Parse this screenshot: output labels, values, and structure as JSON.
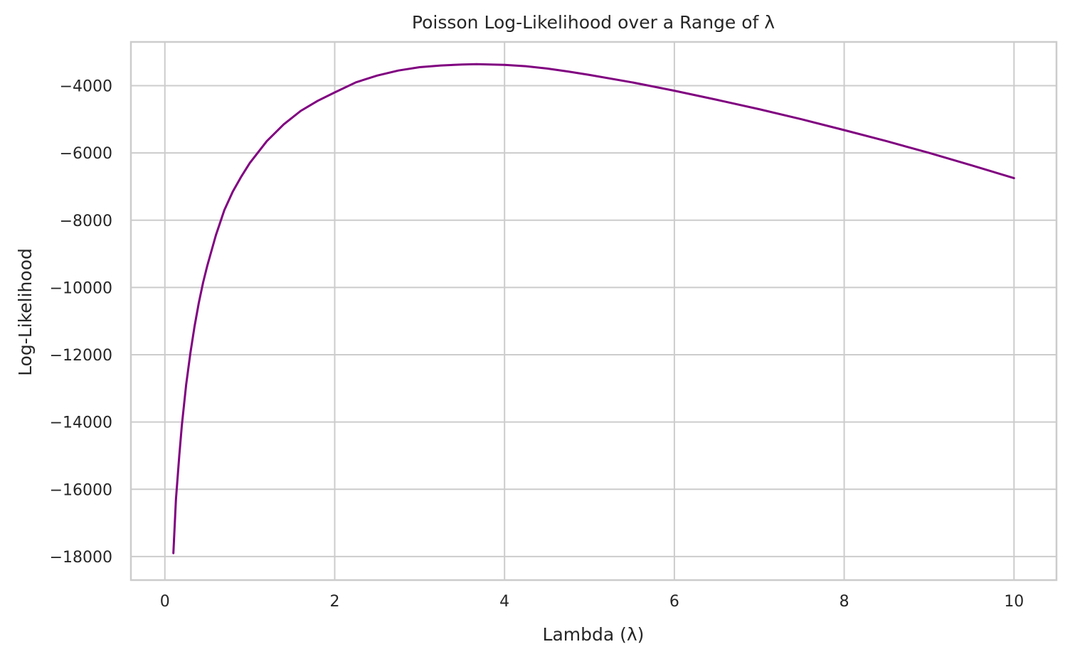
{
  "chart_data": {
    "type": "line",
    "title": "Poisson Log-Likelihood over a Range of λ",
    "xlabel": "Lambda (λ)",
    "ylabel": "Log-Likelihood",
    "xlim": [
      -0.4,
      10.5
    ],
    "ylim": [
      -18700,
      -2700
    ],
    "x_ticks": [
      0,
      2,
      4,
      6,
      8,
      10
    ],
    "x_tick_labels": [
      "0",
      "2",
      "4",
      "6",
      "8",
      "10"
    ],
    "y_ticks": [
      -4000,
      -6000,
      -8000,
      -10000,
      -12000,
      -14000,
      -16000,
      -18000
    ],
    "y_tick_labels": [
      "−4000",
      "−6000",
      "−8000",
      "−10000",
      "−12000",
      "−14000",
      "−16000",
      "−18000"
    ],
    "grid": true,
    "line_color": "#800080",
    "series": [
      {
        "x": [
          0.1,
          0.13,
          0.17,
          0.2,
          0.25,
          0.3,
          0.35,
          0.4,
          0.45,
          0.5,
          0.6,
          0.7,
          0.8,
          0.9,
          1.0,
          1.2,
          1.4,
          1.6,
          1.8,
          2.0,
          2.25,
          2.5,
          2.75,
          3.0,
          3.25,
          3.5,
          3.67,
          4.0,
          4.25,
          4.5,
          4.75,
          5.0,
          5.5,
          6.0,
          6.5,
          7.0,
          7.5,
          8.0,
          8.5,
          9.0,
          9.5,
          10.0
        ],
        "values": [
          -17900,
          -16300,
          -15000,
          -14100,
          -12900,
          -11950,
          -11150,
          -10450,
          -9850,
          -9350,
          -8450,
          -7700,
          -7150,
          -6700,
          -6300,
          -5650,
          -5150,
          -4750,
          -4450,
          -4200,
          -3900,
          -3700,
          -3550,
          -3450,
          -3400,
          -3370,
          -3360,
          -3380,
          -3420,
          -3490,
          -3580,
          -3680,
          -3900,
          -4150,
          -4420,
          -4700,
          -5000,
          -5320,
          -5650,
          -6000,
          -6370,
          -6750
        ]
      }
    ]
  }
}
